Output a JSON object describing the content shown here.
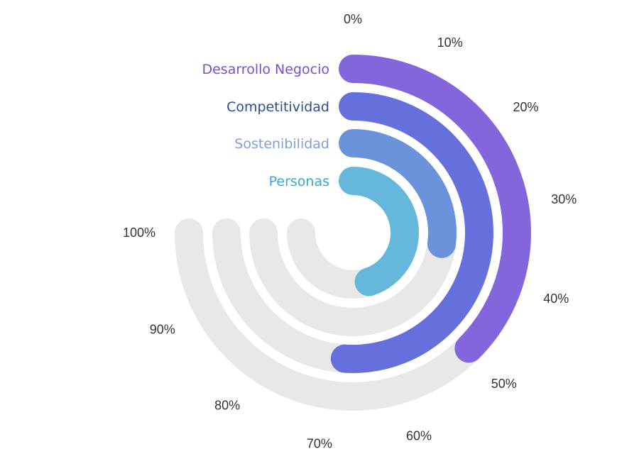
{
  "chart_data": {
    "type": "radial-bar",
    "title": "",
    "axis": {
      "min": 0,
      "max": 100,
      "unit": "%",
      "ticks": [
        "0%",
        "10%",
        "20%",
        "30%",
        "40%",
        "50%",
        "60%",
        "70%",
        "80%",
        "90%",
        "100%"
      ]
    },
    "track_color": "#e8e8e8",
    "series": [
      {
        "name": "Desarrollo Negocio",
        "value": 50,
        "color": "#8466dc",
        "label_color": "#7a4fc6"
      },
      {
        "name": "Competitividad",
        "value": 68,
        "color": "#6670dc",
        "label_color": "#2c4f8a"
      },
      {
        "name": "Sostenibilidad",
        "value": 36,
        "color": "#6a93dc",
        "label_color": "#7f9fd6"
      },
      {
        "name": "Personas",
        "value": 60,
        "color": "#66b7dc",
        "label_color": "#39a9d0"
      }
    ]
  }
}
